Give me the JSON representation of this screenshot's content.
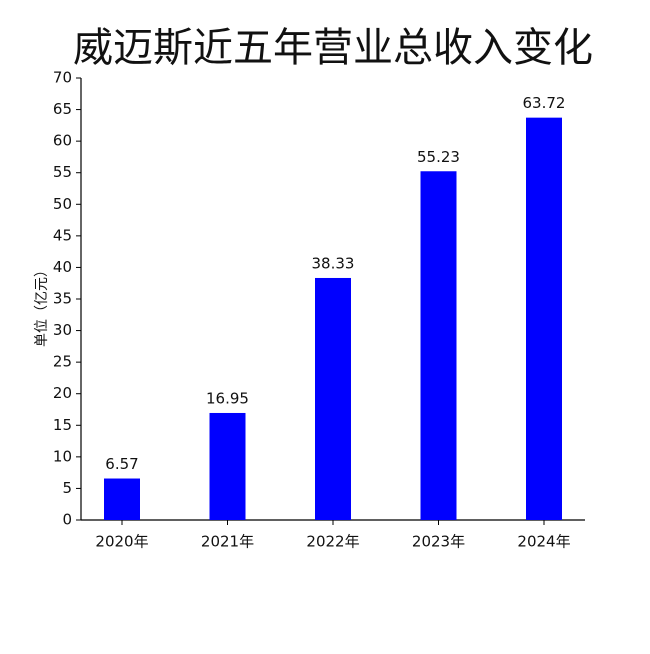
{
  "chart_data": {
    "type": "bar",
    "title": "威迈斯近五年营业总收入变化",
    "y_label": "单位（亿元）",
    "categories": [
      "2020年",
      "2021年",
      "2022年",
      "2023年",
      "2024年"
    ],
    "values": [
      6.57,
      16.95,
      38.33,
      55.23,
      63.72
    ],
    "color": "#0000ff",
    "ylim": [
      0,
      70
    ],
    "yticks": [
      0,
      5,
      10,
      15,
      20,
      25,
      30,
      35,
      40,
      45,
      50,
      55,
      60,
      65,
      70
    ]
  }
}
